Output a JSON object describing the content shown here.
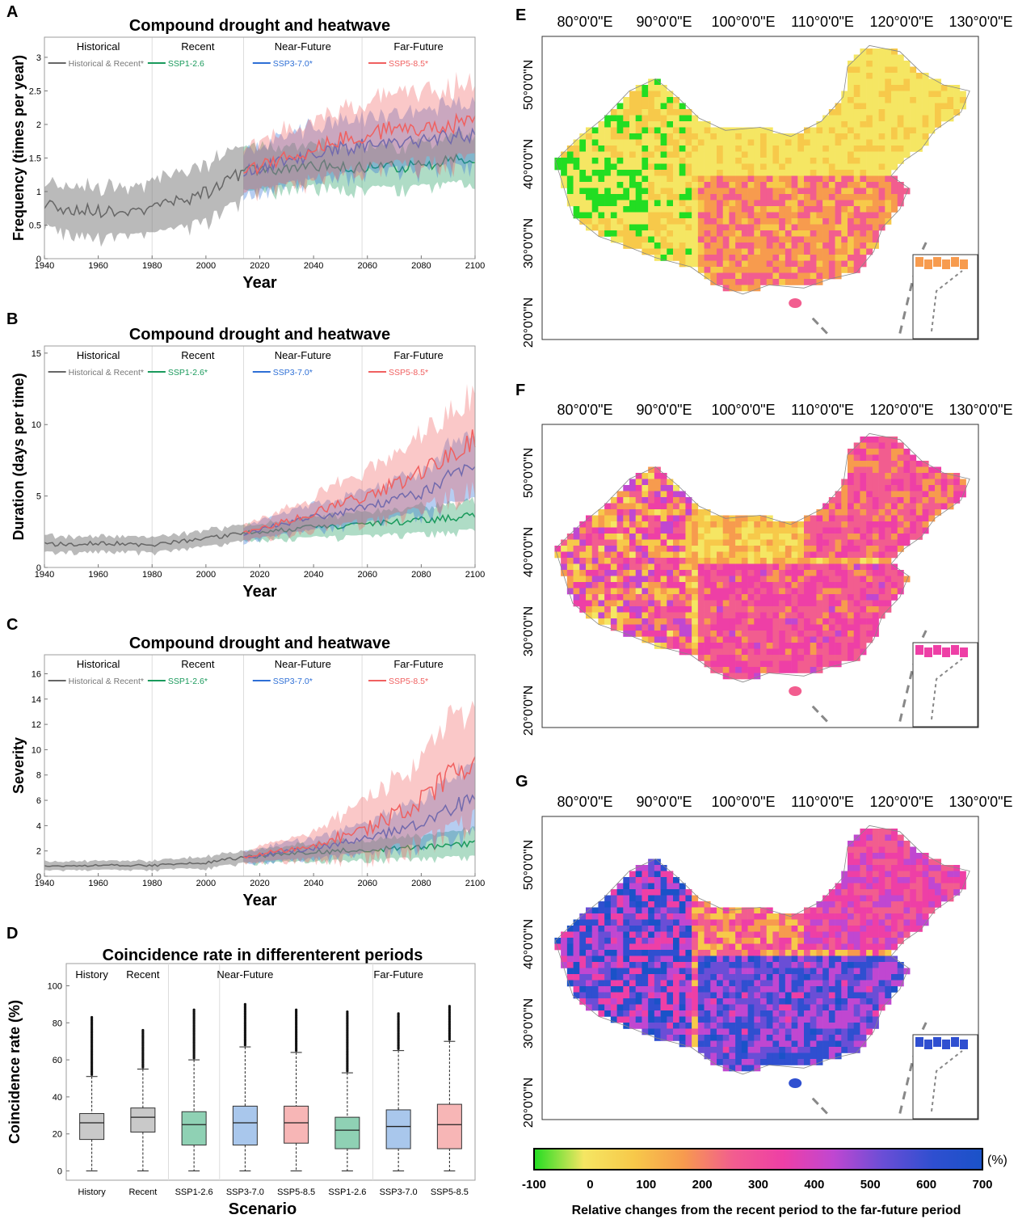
{
  "panels": {
    "A": {
      "letter": "A",
      "title": "Compound drought and heatwave",
      "ylabel": "Frequency (times per year)",
      "xlabel": "Year",
      "period_labels": [
        "Historical",
        "Recent",
        "Near-Future",
        "Far-Future"
      ],
      "legend": [
        "Historical & Recent*",
        "SSP1-2.6",
        "SSP3-7.0*",
        "SSP5-8.5*"
      ]
    },
    "B": {
      "letter": "B",
      "title": "Compound drought and heatwave",
      "ylabel": "Duration (days per time)",
      "xlabel": "Year",
      "period_labels": [
        "Historical",
        "Recent",
        "Near-Future",
        "Far-Future"
      ],
      "legend": [
        "Historical & Recent*",
        "SSP1-2.6*",
        "SSP3-7.0*",
        "SSP5-8.5*"
      ]
    },
    "C": {
      "letter": "C",
      "title": "Compound drought and heatwave",
      "ylabel": "Severity",
      "xlabel": "Year",
      "period_labels": [
        "Historical",
        "Recent",
        "Near-Future",
        "Far-Future"
      ],
      "legend": [
        "Historical & Recent*",
        "SSP1-2.6*",
        "SSP3-7.0*",
        "SSP5-8.5*"
      ]
    },
    "D": {
      "letter": "D",
      "title": "Coincidence rate in differenterent periods",
      "ylabel": "Coincidence rate (%)",
      "xlabel": "Scenario",
      "period_labels": [
        "History",
        "Recent",
        "Near-Future",
        "Far-Future"
      ]
    },
    "E": {
      "letter": "E"
    },
    "F": {
      "letter": "F"
    },
    "G": {
      "letter": "G"
    }
  },
  "map_axes": {
    "lon_labels": [
      "80°0'0\"E",
      "90°0'0\"E",
      "100°0'0\"E",
      "110°0'0\"E",
      "120°0'0\"E",
      "130°0'0\"E"
    ],
    "lat_labels": [
      "50°0'0\"N",
      "40°0'0\"N",
      "30°0'0\"N",
      "20°0'0\"N"
    ]
  },
  "colorbar": {
    "ticks": [
      "-100",
      "0",
      "100",
      "200",
      "300",
      "400",
      "500",
      "600",
      "700"
    ],
    "unit": "(%)",
    "title": "Relative changes from the recent period to the far-future period",
    "colors": [
      "#22dd22",
      "#f5e663",
      "#f7c94a",
      "#f79b4e",
      "#f25d8f",
      "#ee3fa6",
      "#c047d1",
      "#6a4ed6",
      "#2f4fd0",
      "#1a52c8"
    ]
  },
  "series_colors": {
    "historical": "#666666",
    "ssp126": "#1a9a5c",
    "ssp370": "#2e6fd6",
    "ssp585": "#f06060"
  },
  "chart_data": [
    {
      "panel": "A",
      "type": "line",
      "title": "Compound drought and heatwave",
      "xlabel": "Year",
      "ylabel": "Frequency (times per year)",
      "xlim": [
        1940,
        2100
      ],
      "ylim": [
        0,
        3.3
      ],
      "xticks": [
        1940,
        1960,
        1980,
        2000,
        2020,
        2040,
        2060,
        2080,
        2100
      ],
      "yticks": [
        0,
        0.5,
        1,
        1.5,
        2,
        2.5,
        3
      ],
      "period_dividers": [
        1980,
        2014,
        2058
      ],
      "series": [
        {
          "name": "Historical & Recent*",
          "x": [
            1940,
            1950,
            1960,
            1970,
            1980,
            1990,
            2000,
            2005,
            2010,
            2014
          ],
          "y": [
            0.8,
            0.72,
            0.72,
            0.68,
            0.72,
            0.85,
            0.98,
            1.1,
            1.2,
            1.3
          ],
          "band": [
            0.35,
            0.4,
            0.4,
            0.4,
            0.4,
            0.45,
            0.45,
            0.45,
            0.45,
            0.45
          ]
        },
        {
          "name": "SSP1-2.6",
          "x": [
            2014,
            2030,
            2045,
            2060,
            2080,
            2100
          ],
          "y": [
            1.3,
            1.35,
            1.4,
            1.35,
            1.38,
            1.5
          ],
          "band": [
            0.35,
            0.35,
            0.35,
            0.35,
            0.35,
            0.4
          ]
        },
        {
          "name": "SSP3-7.0*",
          "x": [
            2014,
            2030,
            2045,
            2060,
            2080,
            2100
          ],
          "y": [
            1.3,
            1.45,
            1.6,
            1.7,
            1.78,
            1.85
          ],
          "band": [
            0.35,
            0.4,
            0.45,
            0.45,
            0.5,
            0.5
          ]
        },
        {
          "name": "SSP5-8.5*",
          "x": [
            2014,
            2030,
            2045,
            2060,
            2080,
            2100
          ],
          "y": [
            1.3,
            1.5,
            1.72,
            1.85,
            1.98,
            2.05
          ],
          "band": [
            0.35,
            0.45,
            0.5,
            0.55,
            0.6,
            0.6
          ]
        }
      ]
    },
    {
      "panel": "B",
      "type": "line",
      "title": "Compound drought and heatwave",
      "xlabel": "Year",
      "ylabel": "Duration (days per time)",
      "xlim": [
        1940,
        2100
      ],
      "ylim": [
        0,
        15.5
      ],
      "xticks": [
        1940,
        1960,
        1980,
        2000,
        2020,
        2040,
        2060,
        2080,
        2100
      ],
      "yticks": [
        0,
        5,
        10,
        15
      ],
      "period_dividers": [
        1980,
        2014,
        2058
      ],
      "series": [
        {
          "name": "Historical & Recent*",
          "x": [
            1940,
            1960,
            1980,
            2000,
            2014
          ],
          "y": [
            1.6,
            1.7,
            1.6,
            2.0,
            2.4
          ],
          "band": [
            0.6,
            0.6,
            0.6,
            0.6,
            0.6
          ]
        },
        {
          "name": "SSP1-2.6*",
          "x": [
            2014,
            2040,
            2060,
            2080,
            2100
          ],
          "y": [
            2.4,
            2.8,
            3.0,
            3.3,
            3.6
          ],
          "band": [
            0.6,
            0.8,
            0.9,
            1.0,
            1.1
          ]
        },
        {
          "name": "SSP3-7.0*",
          "x": [
            2014,
            2040,
            2060,
            2080,
            2090,
            2100
          ],
          "y": [
            2.4,
            3.5,
            4.2,
            5.2,
            6.3,
            6.8
          ],
          "band": [
            0.6,
            1.0,
            1.2,
            1.6,
            2.2,
            2.4
          ]
        },
        {
          "name": "SSP5-8.5*",
          "x": [
            2014,
            2040,
            2060,
            2080,
            2090,
            2100
          ],
          "y": [
            2.4,
            3.8,
            5.0,
            6.5,
            8.0,
            9.0
          ],
          "band": [
            0.6,
            1.2,
            2.0,
            2.8,
            3.2,
            3.5
          ]
        }
      ]
    },
    {
      "panel": "C",
      "type": "line",
      "title": "Compound drought and heatwave",
      "xlabel": "Year",
      "ylabel": "Severity",
      "xlim": [
        1940,
        2100
      ],
      "ylim": [
        0,
        17.5
      ],
      "xticks": [
        1940,
        1960,
        1980,
        2000,
        2020,
        2040,
        2060,
        2080,
        2100
      ],
      "yticks": [
        0,
        2,
        4,
        6,
        8,
        10,
        12,
        14,
        16
      ],
      "period_dividers": [
        1980,
        2014,
        2058
      ],
      "series": [
        {
          "name": "Historical & Recent*",
          "x": [
            1940,
            1960,
            1980,
            2000,
            2014
          ],
          "y": [
            0.8,
            0.85,
            0.85,
            1.1,
            1.5
          ],
          "band": [
            0.4,
            0.4,
            0.4,
            0.5,
            0.5
          ]
        },
        {
          "name": "SSP1-2.6*",
          "x": [
            2014,
            2040,
            2060,
            2080,
            2100
          ],
          "y": [
            1.5,
            1.9,
            2.1,
            2.3,
            2.6
          ],
          "band": [
            0.5,
            0.8,
            0.9,
            1.0,
            1.2
          ]
        },
        {
          "name": "SSP3-7.0*",
          "x": [
            2014,
            2040,
            2060,
            2080,
            2090,
            2100
          ],
          "y": [
            1.5,
            2.2,
            3.0,
            4.2,
            5.3,
            6.3
          ],
          "band": [
            0.5,
            0.9,
            1.3,
            2.0,
            2.5,
            3.0
          ]
        },
        {
          "name": "SSP5-8.5*",
          "x": [
            2014,
            2040,
            2060,
            2080,
            2090,
            2100
          ],
          "y": [
            1.5,
            2.5,
            3.8,
            6.0,
            7.8,
            9.2
          ],
          "band": [
            0.5,
            1.2,
            2.5,
            3.5,
            4.5,
            5.0
          ]
        }
      ]
    },
    {
      "panel": "D",
      "type": "box",
      "title": "Coincidence rate in differenterent periods",
      "xlabel": "Scenario",
      "ylabel": "Coincidence rate (%)",
      "ylim": [
        -5,
        112
      ],
      "yticks": [
        0,
        20,
        40,
        60,
        80,
        100
      ],
      "categories": [
        "History",
        "Recent",
        "SSP1-2.6",
        "SSP3-7.0",
        "SSP5-8.5",
        "SSP1-2.6",
        "SSP3-7.0",
        "SSP5-8.5"
      ],
      "boxes": [
        {
          "min": 0,
          "q1": 17,
          "median": 26,
          "q3": 31,
          "max": 51,
          "outlier_max": 83,
          "color": "#c9c9c9"
        },
        {
          "min": 0,
          "q1": 21,
          "median": 29,
          "q3": 34,
          "max": 55,
          "outlier_max": 76,
          "color": "#c9c9c9"
        },
        {
          "min": 0,
          "q1": 14,
          "median": 25,
          "q3": 32,
          "max": 60,
          "outlier_max": 87,
          "color": "#8fd1b4"
        },
        {
          "min": 0,
          "q1": 14,
          "median": 26,
          "q3": 35,
          "max": 67,
          "outlier_max": 90,
          "color": "#a9c7ec"
        },
        {
          "min": 0,
          "q1": 15,
          "median": 26,
          "q3": 35,
          "max": 64,
          "outlier_max": 87,
          "color": "#f7b6b6"
        },
        {
          "min": 0,
          "q1": 12,
          "median": 22,
          "q3": 29,
          "max": 53,
          "outlier_max": 86,
          "color": "#8fd1b4"
        },
        {
          "min": 0,
          "q1": 12,
          "median": 24,
          "q3": 33,
          "max": 65,
          "outlier_max": 85,
          "color": "#a9c7ec"
        },
        {
          "min": 0,
          "q1": 12,
          "median": 25,
          "q3": 36,
          "max": 70,
          "outlier_max": 89,
          "color": "#f7b6b6"
        }
      ],
      "group_dividers_after": [
        1,
        2,
        5
      ]
    }
  ]
}
